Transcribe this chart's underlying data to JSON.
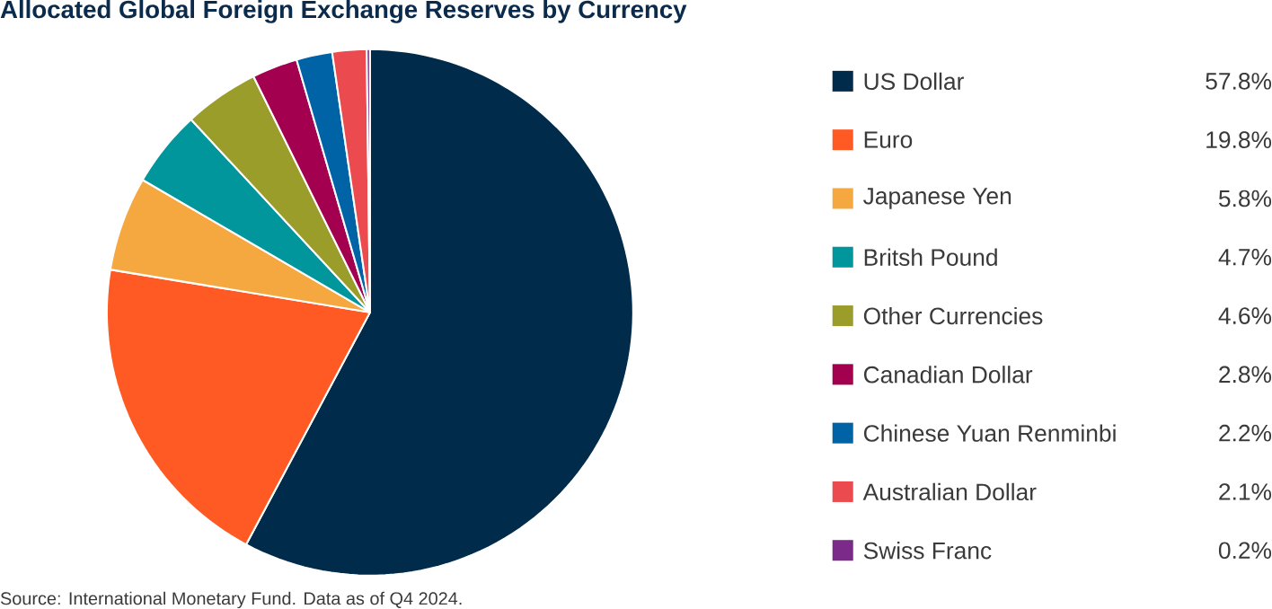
{
  "chart_data": {
    "type": "pie",
    "title": "Allocated Global Foreign Exchange Reserves by Currency",
    "categories": [
      "US Dollar",
      "Euro",
      "Japanese Yen",
      "Britsh Pound",
      "Other Currencies",
      "Canadian Dollar",
      "Chinese Yuan Renminbi",
      "Australian Dollar",
      "Swiss Franc"
    ],
    "values": [
      57.8,
      19.8,
      5.8,
      4.7,
      4.6,
      2.8,
      2.2,
      2.1,
      0.2
    ],
    "value_labels": [
      "57.8%",
      "19.8%",
      "5.8%",
      "4.7%",
      "4.6%",
      "2.8%",
      "2.2%",
      "2.1%",
      "0.2%"
    ],
    "colors": [
      "#002b4a",
      "#ff5a24",
      "#f5a83f",
      "#00969b",
      "#9b9d2a",
      "#a3004f",
      "#0063a6",
      "#eb4a4e",
      "#7b2a8a"
    ],
    "legend": "right",
    "annotations": [
      "Source: International Monetary Fund. Data as of Q4 2024."
    ]
  }
}
